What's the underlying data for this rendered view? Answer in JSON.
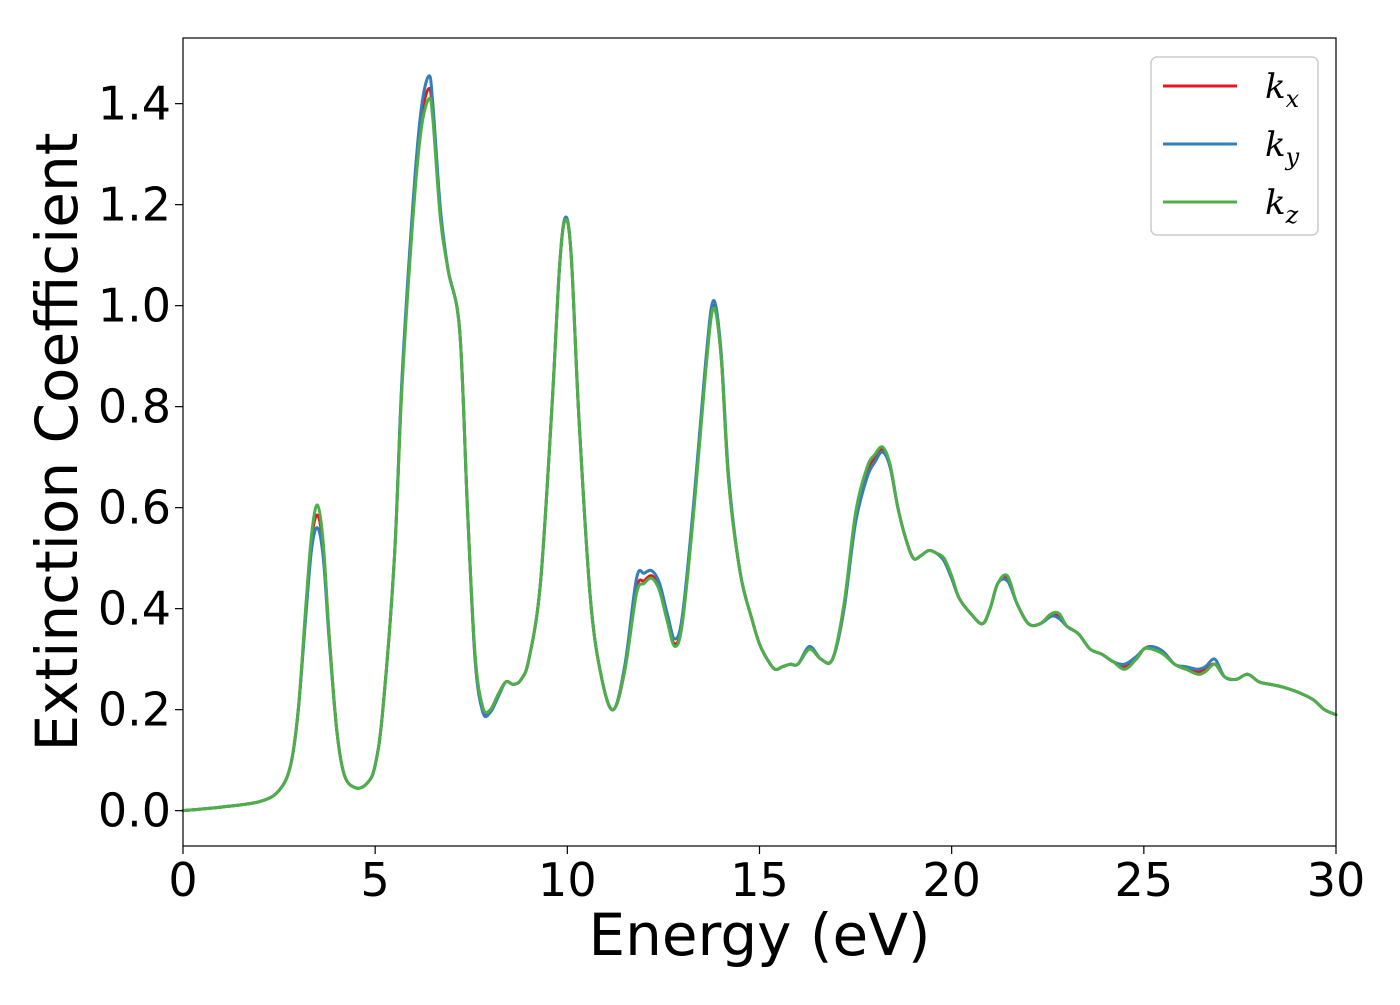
{
  "chart_data": {
    "type": "line",
    "xlabel": "Energy (eV)",
    "ylabel": "Extinction Coefficient",
    "xlim": [
      0,
      30
    ],
    "ylim": [
      -0.07,
      1.53
    ],
    "xticks": [
      0,
      5,
      10,
      15,
      20,
      25,
      30
    ],
    "xtick_labels": [
      "0",
      "5",
      "10",
      "15",
      "20",
      "25",
      "30"
    ],
    "yticks": [
      0.0,
      0.2,
      0.4,
      0.6,
      0.8,
      1.0,
      1.2,
      1.4
    ],
    "ytick_labels": [
      "0.0",
      "0.2",
      "0.4",
      "0.6",
      "0.8",
      "1.0",
      "1.2",
      "1.4"
    ],
    "grid": false,
    "legend_position": "top-right",
    "series": [
      {
        "name": "k_x",
        "label_main": "k",
        "label_sub": "x",
        "color": "#e41a1c",
        "x": [
          0,
          1,
          2,
          2.5,
          2.8,
          3.0,
          3.2,
          3.35,
          3.5,
          3.65,
          3.8,
          4.0,
          4.2,
          4.5,
          4.8,
          5.0,
          5.2,
          5.5,
          5.7,
          6.0,
          6.2,
          6.4,
          6.5,
          6.7,
          6.9,
          7.2,
          7.4,
          7.6,
          7.8,
          8.0,
          8.2,
          8.4,
          8.6,
          8.8,
          9.0,
          9.3,
          9.6,
          9.8,
          9.95,
          10.1,
          10.3,
          10.6,
          10.9,
          11.2,
          11.5,
          11.8,
          12.0,
          12.2,
          12.4,
          12.6,
          12.8,
          13.0,
          13.3,
          13.6,
          13.8,
          14.0,
          14.2,
          14.5,
          14.8,
          15.0,
          15.2,
          15.4,
          15.6,
          15.8,
          16.0,
          16.3,
          16.6,
          16.9,
          17.2,
          17.5,
          17.8,
          18.0,
          18.2,
          18.4,
          18.6,
          18.8,
          19.0,
          19.2,
          19.4,
          19.6,
          19.8,
          20.0,
          20.2,
          20.5,
          20.8,
          21.0,
          21.2,
          21.45,
          21.7,
          22.0,
          22.3,
          22.6,
          22.8,
          23.0,
          23.3,
          23.6,
          23.9,
          24.2,
          24.5,
          24.8,
          25.0,
          25.2,
          25.5,
          25.8,
          26.1,
          26.4,
          26.6,
          26.85,
          27.1,
          27.4,
          27.7,
          28.0,
          28.3,
          28.6,
          29.0,
          29.4,
          29.7,
          30.0
        ],
        "values": [
          0.0,
          0.007,
          0.018,
          0.04,
          0.09,
          0.2,
          0.4,
          0.54,
          0.585,
          0.52,
          0.35,
          0.16,
          0.07,
          0.045,
          0.055,
          0.09,
          0.2,
          0.5,
          0.85,
          1.2,
          1.37,
          1.43,
          1.38,
          1.18,
          1.07,
          0.95,
          0.6,
          0.3,
          0.2,
          0.2,
          0.23,
          0.255,
          0.25,
          0.26,
          0.3,
          0.45,
          0.8,
          1.08,
          1.17,
          1.1,
          0.78,
          0.42,
          0.26,
          0.2,
          0.28,
          0.44,
          0.455,
          0.465,
          0.44,
          0.38,
          0.33,
          0.38,
          0.61,
          0.88,
          1.0,
          0.9,
          0.65,
          0.47,
          0.38,
          0.33,
          0.3,
          0.28,
          0.285,
          0.29,
          0.29,
          0.32,
          0.3,
          0.3,
          0.4,
          0.58,
          0.67,
          0.7,
          0.715,
          0.68,
          0.6,
          0.54,
          0.5,
          0.505,
          0.515,
          0.51,
          0.495,
          0.46,
          0.42,
          0.39,
          0.37,
          0.4,
          0.45,
          0.46,
          0.41,
          0.37,
          0.37,
          0.39,
          0.385,
          0.365,
          0.35,
          0.32,
          0.31,
          0.295,
          0.285,
          0.3,
          0.32,
          0.325,
          0.315,
          0.29,
          0.28,
          0.275,
          0.28,
          0.29,
          0.265,
          0.26,
          0.27,
          0.255,
          0.25,
          0.245,
          0.235,
          0.22,
          0.2,
          0.19
        ]
      },
      {
        "name": "k_y",
        "label_main": "k",
        "label_sub": "y",
        "color": "#377eb8",
        "x": [
          0,
          1,
          2,
          2.5,
          2.8,
          3.0,
          3.2,
          3.35,
          3.5,
          3.65,
          3.8,
          4.0,
          4.2,
          4.5,
          4.8,
          5.0,
          5.2,
          5.5,
          5.7,
          6.0,
          6.2,
          6.4,
          6.5,
          6.7,
          6.9,
          7.2,
          7.4,
          7.6,
          7.8,
          8.0,
          8.2,
          8.4,
          8.6,
          8.8,
          9.0,
          9.3,
          9.6,
          9.8,
          9.95,
          10.1,
          10.3,
          10.6,
          10.9,
          11.2,
          11.5,
          11.8,
          12.0,
          12.2,
          12.4,
          12.6,
          12.8,
          13.0,
          13.3,
          13.6,
          13.8,
          14.0,
          14.2,
          14.5,
          14.8,
          15.0,
          15.2,
          15.4,
          15.6,
          15.8,
          16.0,
          16.3,
          16.6,
          16.9,
          17.2,
          17.5,
          17.8,
          18.0,
          18.2,
          18.4,
          18.6,
          18.8,
          19.0,
          19.2,
          19.4,
          19.6,
          19.8,
          20.0,
          20.2,
          20.5,
          20.8,
          21.0,
          21.2,
          21.45,
          21.7,
          22.0,
          22.3,
          22.6,
          22.8,
          23.0,
          23.3,
          23.6,
          23.9,
          24.2,
          24.5,
          24.8,
          25.0,
          25.2,
          25.5,
          25.8,
          26.1,
          26.4,
          26.6,
          26.85,
          27.1,
          27.4,
          27.7,
          28.0,
          28.3,
          28.6,
          29.0,
          29.4,
          29.7,
          30.0
        ],
        "values": [
          0.0,
          0.007,
          0.018,
          0.04,
          0.09,
          0.2,
          0.39,
          0.52,
          0.56,
          0.5,
          0.34,
          0.16,
          0.07,
          0.045,
          0.055,
          0.09,
          0.2,
          0.5,
          0.86,
          1.22,
          1.39,
          1.455,
          1.4,
          1.19,
          1.07,
          0.95,
          0.6,
          0.3,
          0.195,
          0.195,
          0.225,
          0.255,
          0.25,
          0.26,
          0.3,
          0.45,
          0.8,
          1.08,
          1.175,
          1.1,
          0.78,
          0.42,
          0.26,
          0.2,
          0.29,
          0.46,
          0.47,
          0.475,
          0.45,
          0.39,
          0.34,
          0.39,
          0.62,
          0.89,
          1.01,
          0.91,
          0.66,
          0.47,
          0.38,
          0.33,
          0.3,
          0.28,
          0.285,
          0.29,
          0.29,
          0.325,
          0.3,
          0.3,
          0.4,
          0.57,
          0.66,
          0.69,
          0.71,
          0.68,
          0.6,
          0.54,
          0.5,
          0.505,
          0.515,
          0.51,
          0.495,
          0.46,
          0.42,
          0.39,
          0.37,
          0.4,
          0.45,
          0.455,
          0.41,
          0.37,
          0.37,
          0.385,
          0.38,
          0.365,
          0.35,
          0.32,
          0.31,
          0.295,
          0.29,
          0.305,
          0.32,
          0.325,
          0.315,
          0.29,
          0.285,
          0.28,
          0.285,
          0.3,
          0.265,
          0.26,
          0.27,
          0.255,
          0.25,
          0.245,
          0.235,
          0.22,
          0.2,
          0.19
        ]
      },
      {
        "name": "k_z",
        "label_main": "k",
        "label_sub": "z",
        "color": "#4daf4a",
        "x": [
          0,
          1,
          2,
          2.5,
          2.8,
          3.0,
          3.2,
          3.35,
          3.5,
          3.65,
          3.8,
          4.0,
          4.2,
          4.5,
          4.8,
          5.0,
          5.2,
          5.5,
          5.7,
          6.0,
          6.2,
          6.4,
          6.5,
          6.7,
          6.9,
          7.2,
          7.4,
          7.6,
          7.8,
          8.0,
          8.2,
          8.4,
          8.6,
          8.8,
          9.0,
          9.3,
          9.6,
          9.8,
          9.95,
          10.1,
          10.3,
          10.6,
          10.9,
          11.2,
          11.5,
          11.8,
          12.0,
          12.2,
          12.4,
          12.6,
          12.8,
          13.0,
          13.3,
          13.6,
          13.8,
          14.0,
          14.2,
          14.5,
          14.8,
          15.0,
          15.2,
          15.4,
          15.6,
          15.8,
          16.0,
          16.3,
          16.6,
          16.9,
          17.2,
          17.5,
          17.8,
          18.0,
          18.2,
          18.4,
          18.6,
          18.8,
          19.0,
          19.2,
          19.4,
          19.6,
          19.8,
          20.0,
          20.2,
          20.5,
          20.8,
          21.0,
          21.2,
          21.45,
          21.7,
          22.0,
          22.3,
          22.6,
          22.8,
          23.0,
          23.3,
          23.6,
          23.9,
          24.2,
          24.5,
          24.8,
          25.0,
          25.2,
          25.5,
          25.8,
          26.1,
          26.4,
          26.6,
          26.85,
          27.1,
          27.4,
          27.7,
          28.0,
          28.3,
          28.6,
          29.0,
          29.4,
          29.7,
          30.0
        ],
        "values": [
          0.0,
          0.007,
          0.018,
          0.04,
          0.09,
          0.2,
          0.41,
          0.55,
          0.605,
          0.53,
          0.35,
          0.16,
          0.07,
          0.045,
          0.055,
          0.09,
          0.2,
          0.5,
          0.84,
          1.19,
          1.35,
          1.41,
          1.37,
          1.17,
          1.07,
          0.95,
          0.6,
          0.31,
          0.205,
          0.2,
          0.23,
          0.255,
          0.25,
          0.26,
          0.3,
          0.45,
          0.8,
          1.08,
          1.17,
          1.1,
          0.78,
          0.42,
          0.26,
          0.2,
          0.28,
          0.43,
          0.45,
          0.46,
          0.435,
          0.375,
          0.325,
          0.375,
          0.6,
          0.87,
          0.995,
          0.9,
          0.65,
          0.47,
          0.38,
          0.33,
          0.3,
          0.28,
          0.285,
          0.29,
          0.29,
          0.32,
          0.3,
          0.3,
          0.41,
          0.59,
          0.68,
          0.705,
          0.72,
          0.685,
          0.6,
          0.54,
          0.5,
          0.505,
          0.515,
          0.51,
          0.5,
          0.465,
          0.42,
          0.39,
          0.37,
          0.4,
          0.45,
          0.465,
          0.41,
          0.37,
          0.37,
          0.39,
          0.39,
          0.365,
          0.35,
          0.32,
          0.31,
          0.295,
          0.28,
          0.3,
          0.32,
          0.32,
          0.31,
          0.29,
          0.28,
          0.27,
          0.275,
          0.29,
          0.265,
          0.26,
          0.27,
          0.255,
          0.25,
          0.245,
          0.235,
          0.22,
          0.2,
          0.19
        ]
      }
    ]
  }
}
